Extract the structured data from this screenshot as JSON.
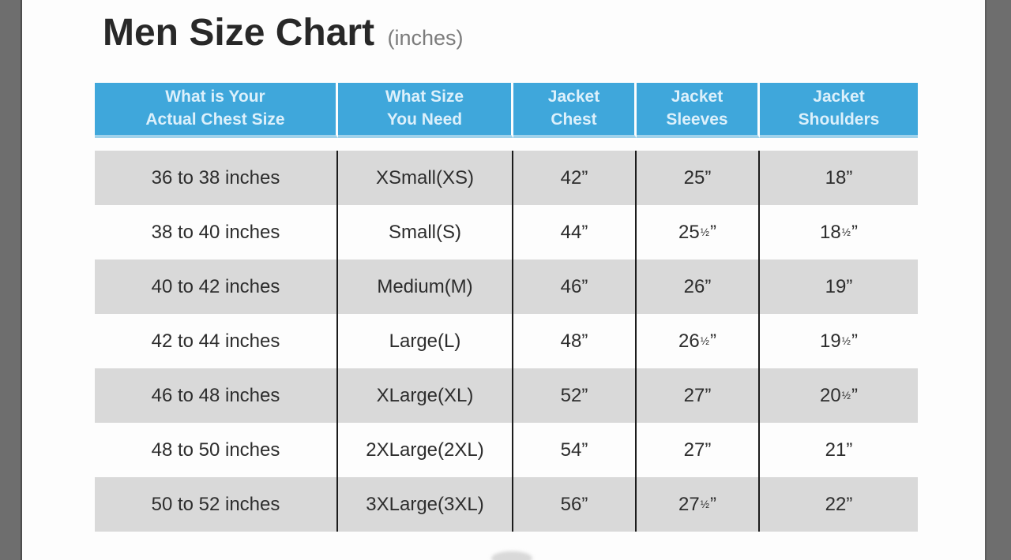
{
  "chart_data": {
    "type": "table",
    "title": "Men Size Chart",
    "unit_label": "(inches)",
    "columns": [
      [
        "What is Your",
        "Actual Chest Size"
      ],
      [
        "What Size",
        "You Need"
      ],
      [
        "Jacket",
        "Chest"
      ],
      [
        "Jacket",
        "Sleeves"
      ],
      [
        "Jacket",
        "Shoulders"
      ]
    ],
    "rows": [
      [
        "36 to 38 inches",
        "XSmall(XS)",
        "42”",
        "25”",
        "18”"
      ],
      [
        "38 to 40 inches",
        "Small(S)",
        "44”",
        "25½”",
        "18½”"
      ],
      [
        "40 to 42 inches",
        "Medium(M)",
        "46”",
        "26”",
        "19”"
      ],
      [
        "42 to 44 inches",
        "Large(L)",
        "48”",
        "26½”",
        "19½”"
      ],
      [
        "46 to 48 inches",
        "XLarge(XL)",
        "52”",
        "27”",
        "20½”"
      ],
      [
        "48 to 50 inches",
        "2XLarge(2XL)",
        "54”",
        "27”",
        "21”"
      ],
      [
        "50 to 52 inches",
        "3XLarge(3XL)",
        "56”",
        "27½”",
        "22”"
      ]
    ]
  },
  "colors": {
    "header_bg": "#3fa7db",
    "header_text": "#dcf0fb",
    "alt_row_bg": "#d9d9d9",
    "row_bg": "#fdfdfd",
    "divider": "#1c1c1c",
    "side_strip": "#6e6e6e",
    "title_text": "#282828",
    "subtitle_text": "#7c7c7c"
  }
}
